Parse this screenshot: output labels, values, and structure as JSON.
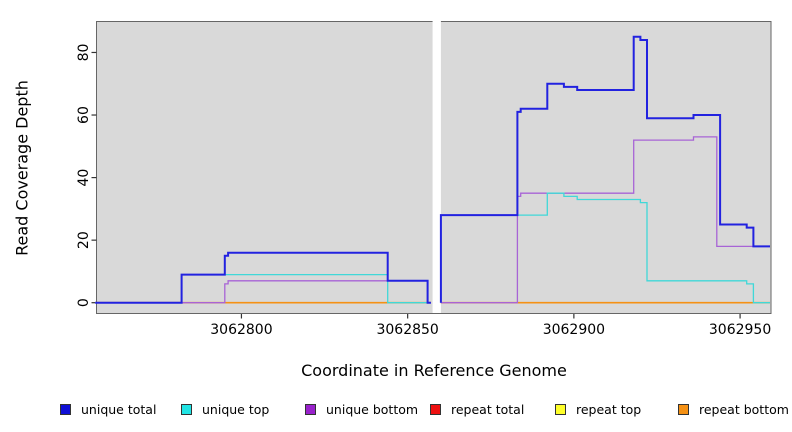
{
  "axes": {
    "x_label": "Coordinate in Reference Genome",
    "y_label": "Read Coverage Depth",
    "x_tick_labels": [
      "3062800",
      "3062850",
      "3062900",
      "3062950"
    ],
    "x_tick_values": [
      3062800,
      3062850,
      3062900,
      3062950
    ],
    "y_tick_labels": [
      "0",
      "20",
      "40",
      "60",
      "80"
    ],
    "y_tick_values": [
      0,
      20,
      40,
      60,
      80
    ]
  },
  "legend": {
    "items": [
      {
        "label": "unique total",
        "color": "#0f0fd6"
      },
      {
        "label": "unique top",
        "color": "#21e4e4"
      },
      {
        "label": "unique bottom",
        "color": "#9922cc"
      },
      {
        "label": "repeat total",
        "color": "#ee1111"
      },
      {
        "label": "repeat top",
        "color": "#ffff2a"
      },
      {
        "label": "repeat bottom",
        "color": "#f59114"
      }
    ]
  },
  "chart_data": {
    "type": "line",
    "subtype": "step-coverage",
    "title": "",
    "xlabel": "Coordinate in Reference Genome",
    "ylabel": "Read Coverage Depth",
    "xlim": [
      3062756,
      3062959
    ],
    "ylim": [
      0,
      85
    ],
    "grid": false,
    "legend_position": "bottom",
    "plot_bg": "#d9d9d9",
    "gap_region": [
      3062857.5,
      3062860
    ],
    "series": [
      {
        "name": "repeat top",
        "color": "#eded24",
        "width": 1.3,
        "segments": [
          [
            [
              3062756,
              0
            ],
            [
              3062857,
              0
            ]
          ],
          [
            [
              3062860,
              0
            ],
            [
              3062959,
              0
            ]
          ]
        ]
      },
      {
        "name": "repeat total",
        "color": "#cc3355",
        "width": 1.3,
        "segments": [
          [
            [
              3062756,
              0
            ],
            [
              3062857,
              0
            ]
          ],
          [
            [
              3062860,
              0
            ],
            [
              3062959,
              0
            ]
          ]
        ]
      },
      {
        "name": "repeat bottom",
        "color": "#f59114",
        "width": 1.6,
        "segments": [
          [
            [
              3062756,
              0
            ],
            [
              3062857,
              0
            ]
          ],
          [
            [
              3062860,
              0
            ],
            [
              3062959,
              0
            ]
          ]
        ]
      },
      {
        "name": "unique bottom",
        "color": "#a864d6",
        "width": 1.3,
        "segments": [
          [
            [
              3062756,
              0
            ],
            [
              3062795,
              6
            ],
            [
              3062796,
              7
            ],
            [
              3062856,
              0
            ],
            [
              3062857,
              0
            ]
          ],
          [
            [
              3062860,
              0
            ],
            [
              3062883,
              34
            ],
            [
              3062884,
              35
            ],
            [
              3062918,
              52
            ],
            [
              3062936,
              53
            ],
            [
              3062943,
              18
            ],
            [
              3062959,
              18
            ]
          ]
        ]
      },
      {
        "name": "unique top",
        "color": "#40d8d8",
        "width": 1.3,
        "segments": [
          [
            [
              3062756,
              0
            ],
            [
              3062782,
              9
            ],
            [
              3062844,
              0
            ],
            [
              3062856,
              0
            ]
          ],
          [
            [
              3062860,
              0
            ],
            [
              3062860,
              28
            ],
            [
              3062892,
              35
            ],
            [
              3062897,
              34
            ],
            [
              3062901,
              33
            ],
            [
              3062920,
              32
            ],
            [
              3062922,
              7
            ],
            [
              3062952,
              6
            ],
            [
              3062954,
              0
            ],
            [
              3062959,
              0
            ]
          ]
        ]
      },
      {
        "name": "unique total",
        "color": "#2222e0",
        "width": 2,
        "segments": [
          [
            [
              3062756,
              0
            ],
            [
              3062782,
              9
            ],
            [
              3062795,
              15
            ],
            [
              3062796,
              16
            ],
            [
              3062844,
              7
            ],
            [
              3062856,
              0
            ],
            [
              3062857,
              0
            ]
          ],
          [
            [
              3062860,
              0
            ],
            [
              3062860,
              28
            ],
            [
              3062883,
              61
            ],
            [
              3062884,
              62
            ],
            [
              3062892,
              70
            ],
            [
              3062897,
              69
            ],
            [
              3062901,
              68
            ],
            [
              3062918,
              85
            ],
            [
              3062920,
              84
            ],
            [
              3062922,
              59
            ],
            [
              3062936,
              60
            ],
            [
              3062944,
              25
            ],
            [
              3062952,
              24
            ],
            [
              3062954,
              18
            ],
            [
              3062959,
              18
            ]
          ]
        ]
      }
    ]
  }
}
